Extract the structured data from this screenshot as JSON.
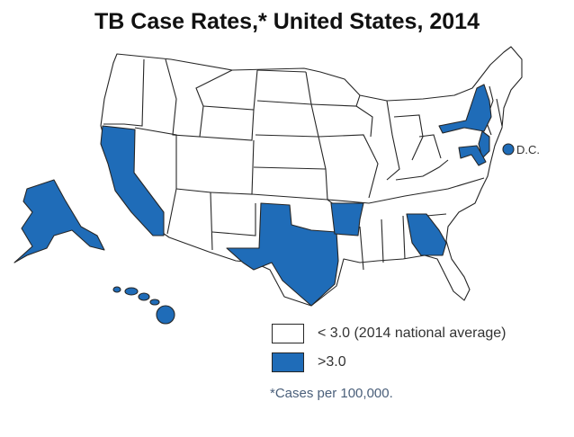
{
  "title": "TB Case Rates,* United States, 2014",
  "colors": {
    "low": "#ffffff",
    "high": "#1f6cb8",
    "border": "#262626"
  },
  "legend": [
    {
      "category": "low",
      "label": "< 3.0 (2014 national average)"
    },
    {
      "category": "high",
      "label": ">3.0"
    }
  ],
  "dc_label": "D.C.",
  "footnote": "*Cases per 100,000.",
  "map_data": {
    "high_rate_states": [
      "Alaska",
      "Arkansas",
      "California",
      "District of Columbia",
      "Georgia",
      "Hawaii",
      "Maryland",
      "New Jersey",
      "New York",
      "Texas"
    ]
  }
}
